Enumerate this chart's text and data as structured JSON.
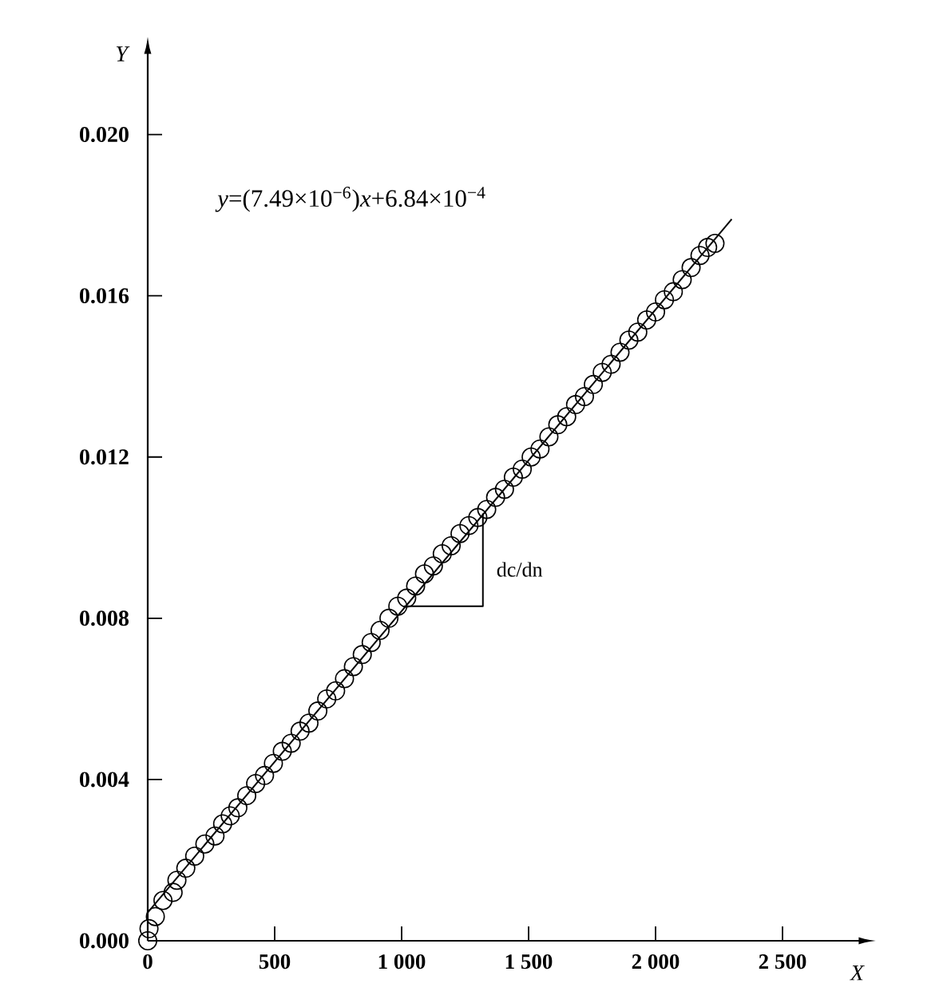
{
  "chart_data": {
    "type": "scatter",
    "xlabel": "X",
    "ylabel": "Y",
    "xlim": [
      0,
      2800
    ],
    "ylim": [
      0,
      0.022
    ],
    "xticks": [
      0,
      500,
      {
        "value": 1000,
        "label": "1 000"
      },
      {
        "value": 1500,
        "label": "1 500"
      },
      {
        "value": 2000,
        "label": "2 000"
      },
      {
        "value": 2500,
        "label": "2 500"
      }
    ],
    "yticks": [
      {
        "value": 0,
        "label": "0.000"
      },
      {
        "value": 0.004,
        "label": "0.004"
      },
      {
        "value": 0.008,
        "label": "0.008"
      },
      {
        "value": 0.012,
        "label": "0.012"
      },
      {
        "value": 0.016,
        "label": "0.016"
      },
      {
        "value": 0.02,
        "label": "0.020"
      }
    ],
    "series": [
      {
        "color": "#000000",
        "marker": "circle",
        "x": [
          0,
          5,
          30,
          60,
          100,
          115,
          150,
          185,
          225,
          265,
          295,
          325,
          355,
          390,
          425,
          460,
          495,
          530,
          565,
          600,
          635,
          670,
          705,
          740,
          775,
          810,
          845,
          880,
          915,
          950,
          985,
          1020,
          1055,
          1090,
          1125,
          1160,
          1195,
          1230,
          1265,
          1300,
          1335,
          1370,
          1405,
          1440,
          1475,
          1510,
          1545,
          1580,
          1615,
          1650,
          1685,
          1720,
          1755,
          1790,
          1825,
          1860,
          1895,
          1930,
          1965,
          2000,
          2035,
          2070,
          2105,
          2140,
          2175,
          2205,
          2234
        ],
        "values": [
          0,
          0.0003,
          0.0006,
          0.001,
          0.0012,
          0.0015,
          0.0018,
          0.0021,
          0.0024,
          0.0026,
          0.0029,
          0.0031,
          0.0033,
          0.0036,
          0.0039,
          0.0041,
          0.0044,
          0.0047,
          0.0049,
          0.0052,
          0.0054,
          0.0057,
          0.006,
          0.0062,
          0.0065,
          0.0068,
          0.0071,
          0.0074,
          0.0077,
          0.008,
          0.0083,
          0.0085,
          0.0088,
          0.0091,
          0.0093,
          0.0096,
          0.0098,
          0.0101,
          0.0103,
          0.0105,
          0.0107,
          0.011,
          0.0112,
          0.0115,
          0.0117,
          0.012,
          0.0122,
          0.0125,
          0.0128,
          0.013,
          0.0133,
          0.0135,
          0.0138,
          0.0141,
          0.0143,
          0.0146,
          0.0149,
          0.0151,
          0.0154,
          0.0156,
          0.0159,
          0.0161,
          0.0164,
          0.0167,
          0.017,
          0.0172,
          0.0173
        ]
      },
      {
        "type": "line",
        "color": "#000000",
        "marker": "none",
        "x": [
          0,
          2300
        ],
        "values": [
          0.0007,
          0.0179
        ]
      },
      {
        "type": "line",
        "name": "dc/dn",
        "color": "#000000",
        "marker": "none",
        "x": [
          1010,
          1320,
          1320
        ],
        "values": [
          0.0083,
          0.0083,
          0.0106
        ]
      }
    ],
    "annotations": [
      "*y*=(7.49×10$^{−6}$)*x*+6.84×10$^{−4}$"
    ]
  }
}
